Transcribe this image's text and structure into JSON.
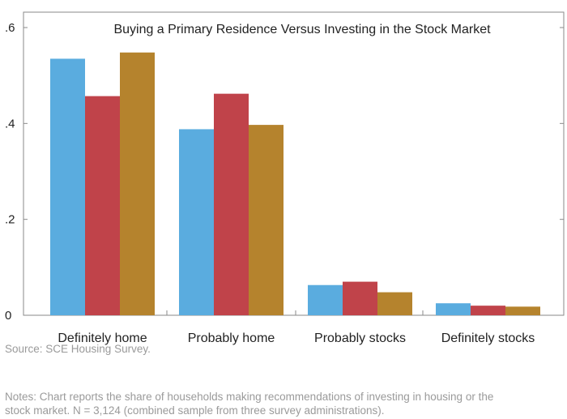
{
  "chart_data": {
    "type": "bar",
    "title": "Buying a Primary Residence Versus Investing in the Stock Market",
    "categories": [
      "Definitely home",
      "Probably home",
      "Probably stocks",
      "Definitely stocks"
    ],
    "series": [
      {
        "color": "#5aacdf",
        "values": [
          0.535,
          0.388,
          0.063,
          0.025
        ]
      },
      {
        "color": "#c0434a",
        "values": [
          0.457,
          0.462,
          0.07,
          0.02
        ]
      },
      {
        "color": "#b5832d",
        "values": [
          0.548,
          0.397,
          0.048,
          0.018
        ]
      }
    ],
    "y_ticks": [
      {
        "value": 0,
        "label": "0"
      },
      {
        "value": 0.2,
        "label": ".2"
      },
      {
        "value": 0.4,
        "label": ".4"
      },
      {
        "value": 0.6,
        "label": ".6"
      }
    ],
    "ylim": [
      0,
      0.6
    ],
    "xlabel": "",
    "ylabel": "",
    "grid": false,
    "legend": "none"
  },
  "footer": {
    "source": "Source: SCE Housing Survey.",
    "notes_line1": "Notes: Chart reports the share of households making recommendations of investing in housing or the",
    "notes_line2": "stock market. N = 3,124 (combined sample from three survey administrations)."
  }
}
